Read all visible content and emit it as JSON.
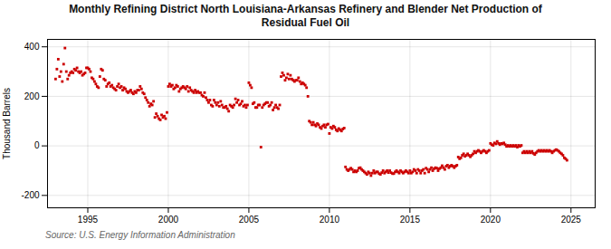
{
  "chart_data": {
    "type": "scatter",
    "title": "Monthly Refining District North Louisiana-Arkansas Refinery and Blender Net Production of\nResidual Fuel Oil",
    "ylabel": "Thousand Barrels",
    "annotations": [
      "Source: U.S. Energy Information Administration"
    ],
    "color": "#cc0000",
    "marker": "square",
    "grid": true,
    "xlim": [
      1992.5,
      2026.5
    ],
    "xticks": [
      1995,
      2000,
      2005,
      2010,
      2015,
      2020,
      2025
    ],
    "ylim": [
      -250,
      430
    ],
    "yticks": [
      -200,
      0,
      200,
      400
    ],
    "x": [
      1993.0,
      1993.083,
      1993.167,
      1993.25,
      1993.333,
      1993.417,
      1993.5,
      1993.583,
      1993.667,
      1993.75,
      1993.833,
      1993.917,
      1994.0,
      1994.083,
      1994.167,
      1994.25,
      1994.333,
      1994.417,
      1994.5,
      1994.583,
      1994.667,
      1994.75,
      1994.833,
      1994.917,
      1995.0,
      1995.083,
      1995.167,
      1995.25,
      1995.333,
      1995.417,
      1995.5,
      1995.583,
      1995.667,
      1995.75,
      1995.833,
      1995.917,
      1996.0,
      1996.083,
      1996.167,
      1996.25,
      1996.333,
      1996.417,
      1996.5,
      1996.583,
      1996.667,
      1996.75,
      1996.833,
      1996.917,
      1997.0,
      1997.083,
      1997.167,
      1997.25,
      1997.333,
      1997.417,
      1997.5,
      1997.583,
      1997.667,
      1997.75,
      1997.833,
      1997.917,
      1998.0,
      1998.083,
      1998.167,
      1998.25,
      1998.333,
      1998.417,
      1998.5,
      1998.583,
      1998.667,
      1998.75,
      1998.833,
      1998.917,
      1999.0,
      1999.083,
      1999.167,
      1999.25,
      1999.333,
      1999.417,
      1999.5,
      1999.583,
      1999.667,
      1999.75,
      1999.833,
      1999.917,
      2000.0,
      2000.083,
      2000.167,
      2000.25,
      2000.333,
      2000.417,
      2000.5,
      2000.583,
      2000.667,
      2000.75,
      2000.833,
      2000.917,
      2001.0,
      2001.083,
      2001.167,
      2001.25,
      2001.333,
      2001.417,
      2001.5,
      2001.583,
      2001.667,
      2001.75,
      2001.833,
      2001.917,
      2002.0,
      2002.083,
      2002.167,
      2002.25,
      2002.333,
      2002.417,
      2002.5,
      2002.583,
      2002.667,
      2002.75,
      2002.833,
      2002.917,
      2003.0,
      2003.083,
      2003.167,
      2003.25,
      2003.333,
      2003.417,
      2003.5,
      2003.583,
      2003.667,
      2003.75,
      2003.833,
      2003.917,
      2004.0,
      2004.083,
      2004.167,
      2004.25,
      2004.333,
      2004.417,
      2004.5,
      2004.583,
      2004.667,
      2004.75,
      2004.833,
      2004.917,
      2005.0,
      2005.083,
      2005.167,
      2005.25,
      2005.333,
      2005.417,
      2005.5,
      2005.583,
      2005.667,
      2005.75,
      2005.833,
      2005.917,
      2006.0,
      2006.083,
      2006.167,
      2006.25,
      2006.333,
      2006.417,
      2006.5,
      2006.583,
      2006.667,
      2006.75,
      2006.833,
      2006.917,
      2007.0,
      2007.083,
      2007.167,
      2007.25,
      2007.333,
      2007.417,
      2007.5,
      2007.583,
      2007.667,
      2007.75,
      2007.833,
      2007.917,
      2008.0,
      2008.083,
      2008.167,
      2008.25,
      2008.333,
      2008.417,
      2008.5,
      2008.583,
      2008.667,
      2008.75,
      2008.833,
      2008.917,
      2009.0,
      2009.083,
      2009.167,
      2009.25,
      2009.333,
      2009.417,
      2009.5,
      2009.583,
      2009.667,
      2009.75,
      2009.833,
      2009.917,
      2010.0,
      2010.083,
      2010.167,
      2010.25,
      2010.333,
      2010.417,
      2010.5,
      2010.583,
      2010.667,
      2010.75,
      2010.833,
      2010.917,
      2011.0,
      2011.083,
      2011.167,
      2011.25,
      2011.333,
      2011.417,
      2011.5,
      2011.583,
      2011.667,
      2011.75,
      2011.833,
      2011.917,
      2012.0,
      2012.083,
      2012.167,
      2012.25,
      2012.333,
      2012.417,
      2012.5,
      2012.583,
      2012.667,
      2012.75,
      2012.833,
      2012.917,
      2013.0,
      2013.083,
      2013.167,
      2013.25,
      2013.333,
      2013.417,
      2013.5,
      2013.583,
      2013.667,
      2013.75,
      2013.833,
      2013.917,
      2014.0,
      2014.083,
      2014.167,
      2014.25,
      2014.333,
      2014.417,
      2014.5,
      2014.583,
      2014.667,
      2014.75,
      2014.833,
      2014.917,
      2015.0,
      2015.083,
      2015.167,
      2015.25,
      2015.333,
      2015.417,
      2015.5,
      2015.583,
      2015.667,
      2015.75,
      2015.833,
      2015.917,
      2016.0,
      2016.083,
      2016.167,
      2016.25,
      2016.333,
      2016.417,
      2016.5,
      2016.583,
      2016.667,
      2016.75,
      2016.833,
      2016.917,
      2017.0,
      2017.083,
      2017.167,
      2017.25,
      2017.333,
      2017.417,
      2017.5,
      2017.583,
      2017.667,
      2017.75,
      2017.833,
      2017.917,
      2018.0,
      2018.083,
      2018.167,
      2018.25,
      2018.333,
      2018.417,
      2018.5,
      2018.583,
      2018.667,
      2018.75,
      2018.833,
      2018.917,
      2019.0,
      2019.083,
      2019.167,
      2019.25,
      2019.333,
      2019.417,
      2019.5,
      2019.583,
      2019.667,
      2019.75,
      2019.833,
      2019.917,
      2020.0,
      2020.083,
      2020.167,
      2020.25,
      2020.333,
      2020.417,
      2020.5,
      2020.583,
      2020.667,
      2020.75,
      2020.833,
      2020.917,
      2021.0,
      2021.083,
      2021.167,
      2021.25,
      2021.333,
      2021.417,
      2021.5,
      2021.583,
      2021.667,
      2021.75,
      2021.833,
      2021.917,
      2022.0,
      2022.083,
      2022.167,
      2022.25,
      2022.333,
      2022.417,
      2022.5,
      2022.583,
      2022.667,
      2022.75,
      2022.833,
      2022.917,
      2023.0,
      2023.083,
      2023.167,
      2023.25,
      2023.333,
      2023.417,
      2023.5,
      2023.583,
      2023.667,
      2023.75,
      2023.833,
      2023.917,
      2024.0,
      2024.083,
      2024.167,
      2024.25,
      2024.333,
      2024.417,
      2024.5,
      2024.583,
      2024.667,
      2024.75
    ],
    "values": [
      270,
      310,
      350,
      280,
      300,
      260,
      330,
      395,
      300,
      270,
      285,
      295,
      300,
      295,
      310,
      305,
      315,
      300,
      295,
      300,
      285,
      290,
      295,
      315,
      315,
      310,
      300,
      275,
      270,
      260,
      250,
      240,
      235,
      280,
      310,
      305,
      270,
      265,
      240,
      250,
      255,
      240,
      245,
      235,
      230,
      225,
      240,
      250,
      235,
      240,
      225,
      235,
      230,
      220,
      215,
      220,
      225,
      215,
      210,
      220,
      215,
      225,
      225,
      240,
      230,
      215,
      210,
      195,
      185,
      175,
      160,
      170,
      165,
      180,
      115,
      130,
      120,
      110,
      105,
      125,
      115,
      120,
      110,
      135,
      240,
      250,
      240,
      245,
      230,
      235,
      245,
      240,
      220,
      230,
      235,
      240,
      235,
      230,
      240,
      220,
      235,
      225,
      220,
      215,
      225,
      215,
      220,
      215,
      215,
      205,
      200,
      215,
      195,
      185,
      175,
      185,
      165,
      160,
      185,
      175,
      165,
      175,
      160,
      180,
      165,
      155,
      155,
      160,
      150,
      140,
      165,
      160,
      155,
      165,
      190,
      175,
      185,
      165,
      170,
      180,
      160,
      165,
      155,
      165,
      255,
      245,
      235,
      170,
      175,
      155,
      155,
      165,
      165,
      -5,
      155,
      165,
      170,
      175,
      175,
      160,
      165,
      175,
      145,
      155,
      165,
      155,
      150,
      165,
      280,
      295,
      285,
      265,
      275,
      290,
      270,
      285,
      270,
      265,
      260,
      265,
      265,
      275,
      260,
      250,
      255,
      250,
      245,
      235,
      200,
      100,
      95,
      85,
      95,
      85,
      80,
      90,
      85,
      75,
      70,
      80,
      85,
      75,
      85,
      88,
      50,
      75,
      70,
      80,
      75,
      65,
      60,
      70,
      65,
      60,
      68,
      72,
      -85,
      -95,
      -100,
      -95,
      -90,
      -95,
      -105,
      -100,
      -105,
      -100,
      -90,
      -88,
      -95,
      -100,
      -105,
      -110,
      -115,
      -105,
      -110,
      -120,
      -110,
      -100,
      -110,
      -105,
      -105,
      -112,
      -115,
      -108,
      -100,
      -110,
      -105,
      -100,
      -108,
      -100,
      -108,
      -112,
      -112,
      -105,
      -100,
      -105,
      -110,
      -100,
      -105,
      -110,
      -105,
      -100,
      -105,
      -110,
      -100,
      -110,
      -105,
      -95,
      -100,
      -110,
      -95,
      -100,
      -110,
      -100,
      -95,
      -110,
      -90,
      -95,
      -105,
      -95,
      -88,
      -100,
      -92,
      -88,
      -90,
      -100,
      -92,
      -88,
      -80,
      -88,
      -95,
      -82,
      -78,
      -88,
      -82,
      -78,
      -82,
      -88,
      -82,
      -78,
      -45,
      -52,
      -48,
      -38,
      -32,
      -42,
      -38,
      -32,
      -38,
      -44,
      -38,
      -32,
      -22,
      -28,
      -22,
      -18,
      -22,
      -28,
      -22,
      -18,
      -22,
      -28,
      -22,
      -18,
      10,
      5,
      2,
      12,
      8,
      18,
      10,
      5,
      10,
      8,
      12,
      5,
      -2,
      2,
      -2,
      2,
      -2,
      2,
      -2,
      2,
      -5,
      2,
      -2,
      2,
      -28,
      -22,
      -28,
      -22,
      -28,
      -22,
      -28,
      -22,
      -30,
      -35,
      -28,
      -22,
      -18,
      -22,
      -18,
      -22,
      -18,
      -22,
      -18,
      -22,
      -18,
      -22,
      -28,
      -22,
      -18,
      -15,
      -18,
      -22,
      -28,
      -32,
      -38,
      -48,
      -52,
      -58
    ]
  }
}
